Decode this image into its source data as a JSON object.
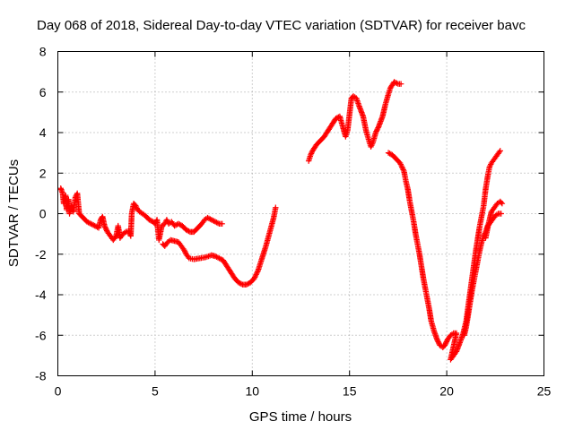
{
  "chart_data": {
    "type": "scatter",
    "title": "Day 068 of 2018, Sidereal Day-to-day VTEC variation (SDTVAR) for receiver bavc",
    "xlabel": "GPS time / hours",
    "ylabel": "SDTVAR / TECUs",
    "xlim": [
      0,
      25
    ],
    "ylim": [
      -8,
      8
    ],
    "xticks": [
      0,
      5,
      10,
      15,
      20,
      25
    ],
    "yticks": [
      -8,
      -6,
      -4,
      -2,
      0,
      2,
      4,
      6,
      8
    ],
    "grid": true,
    "marker": "+",
    "color": "#ff0000",
    "series": [
      {
        "values": [
          [
            0.15,
            1.25
          ],
          [
            0.25,
            1.0
          ],
          [
            0.3,
            0.5
          ],
          [
            0.4,
            0.9
          ],
          [
            0.45,
            0.2
          ],
          [
            0.55,
            0.7
          ],
          [
            0.6,
            0.0
          ],
          [
            0.7,
            0.4
          ],
          [
            0.8,
            0.1
          ],
          [
            0.9,
            0.8
          ],
          [
            1.0,
            1.0
          ],
          [
            1.1,
            0.0
          ],
          [
            1.3,
            -0.2
          ],
          [
            1.5,
            -0.4
          ],
          [
            1.7,
            -0.5
          ],
          [
            1.9,
            -0.6
          ],
          [
            2.1,
            -0.7
          ],
          [
            2.2,
            -0.3
          ],
          [
            2.3,
            -0.15
          ],
          [
            2.4,
            -0.6
          ],
          [
            2.55,
            -0.9
          ],
          [
            2.7,
            -1.1
          ],
          [
            2.85,
            -1.3
          ],
          [
            3.0,
            -1.1
          ],
          [
            3.1,
            -0.6
          ],
          [
            3.2,
            -1.2
          ],
          [
            3.35,
            -1.0
          ],
          [
            3.5,
            -0.9
          ],
          [
            3.65,
            -0.85
          ],
          [
            3.75,
            -1.1
          ],
          [
            3.8,
            0.0
          ],
          [
            3.9,
            0.5
          ],
          [
            4.0,
            0.4
          ],
          [
            4.1,
            0.2
          ],
          [
            4.2,
            0.1
          ],
          [
            4.35,
            0.0
          ],
          [
            4.5,
            -0.1
          ],
          [
            4.7,
            -0.3
          ],
          [
            4.9,
            -0.4
          ],
          [
            5.0,
            -0.5
          ],
          [
            5.1,
            -0.3
          ],
          [
            5.2,
            -1.3
          ],
          [
            5.35,
            -0.6
          ],
          [
            5.5,
            -0.5
          ],
          [
            5.6,
            -0.3
          ],
          [
            5.7,
            -0.5
          ],
          [
            5.85,
            -0.4
          ],
          [
            6.0,
            -0.6
          ],
          [
            6.2,
            -0.5
          ],
          [
            6.4,
            -0.6
          ],
          [
            6.6,
            -0.8
          ],
          [
            6.8,
            -0.9
          ],
          [
            7.0,
            -0.9
          ],
          [
            7.2,
            -0.7
          ],
          [
            7.4,
            -0.5
          ],
          [
            7.55,
            -0.3
          ],
          [
            7.7,
            -0.2
          ],
          [
            7.9,
            -0.3
          ],
          [
            8.1,
            -0.4
          ],
          [
            8.3,
            -0.5
          ],
          [
            8.45,
            -0.5
          ]
        ]
      },
      {
        "values": [
          [
            5.4,
            -1.5
          ],
          [
            5.5,
            -1.6
          ],
          [
            5.65,
            -1.4
          ],
          [
            5.8,
            -1.3
          ],
          [
            6.0,
            -1.35
          ],
          [
            6.2,
            -1.4
          ],
          [
            6.35,
            -1.6
          ],
          [
            6.5,
            -1.8
          ],
          [
            6.6,
            -2.0
          ],
          [
            6.75,
            -2.2
          ],
          [
            7.0,
            -2.25
          ],
          [
            7.3,
            -2.2
          ],
          [
            7.6,
            -2.15
          ],
          [
            7.9,
            -2.05
          ],
          [
            8.1,
            -2.1
          ],
          [
            8.3,
            -2.2
          ],
          [
            8.5,
            -2.3
          ],
          [
            8.7,
            -2.6
          ],
          [
            8.9,
            -2.9
          ],
          [
            9.1,
            -3.2
          ],
          [
            9.3,
            -3.4
          ],
          [
            9.5,
            -3.5
          ],
          [
            9.7,
            -3.5
          ],
          [
            9.9,
            -3.4
          ],
          [
            10.1,
            -3.2
          ],
          [
            10.3,
            -2.8
          ],
          [
            10.5,
            -2.2
          ],
          [
            10.7,
            -1.6
          ],
          [
            10.9,
            -0.9
          ],
          [
            11.1,
            -0.2
          ],
          [
            11.2,
            0.3
          ]
        ]
      },
      {
        "values": [
          [
            12.9,
            2.6
          ],
          [
            13.0,
            2.9
          ],
          [
            13.1,
            3.1
          ],
          [
            13.3,
            3.4
          ],
          [
            13.5,
            3.6
          ],
          [
            13.7,
            3.8
          ],
          [
            13.9,
            4.1
          ],
          [
            14.1,
            4.4
          ],
          [
            14.3,
            4.7
          ],
          [
            14.5,
            4.8
          ],
          [
            14.8,
            3.8
          ],
          [
            14.9,
            4.1
          ],
          [
            15.1,
            5.7
          ],
          [
            15.2,
            5.8
          ],
          [
            15.35,
            5.7
          ],
          [
            15.5,
            5.3
          ],
          [
            15.7,
            4.8
          ],
          [
            15.85,
            4.1
          ],
          [
            16.0,
            3.6
          ],
          [
            16.1,
            3.3
          ],
          [
            16.2,
            3.5
          ],
          [
            16.35,
            4.0
          ],
          [
            16.5,
            4.3
          ],
          [
            16.7,
            4.8
          ],
          [
            16.85,
            5.4
          ],
          [
            17.0,
            5.9
          ],
          [
            17.1,
            6.2
          ],
          [
            17.3,
            6.5
          ],
          [
            17.5,
            6.4
          ],
          [
            17.65,
            6.4
          ]
        ]
      },
      {
        "values": [
          [
            17.0,
            3.0
          ],
          [
            17.2,
            2.9
          ],
          [
            17.4,
            2.7
          ],
          [
            17.6,
            2.5
          ],
          [
            17.8,
            2.1
          ],
          [
            17.9,
            1.6
          ],
          [
            18.0,
            1.2
          ],
          [
            18.1,
            0.6
          ],
          [
            18.2,
            0.1
          ],
          [
            18.3,
            -0.4
          ],
          [
            18.4,
            -1.0
          ],
          [
            18.5,
            -1.5
          ],
          [
            18.6,
            -2.0
          ],
          [
            18.7,
            -2.6
          ],
          [
            18.8,
            -3.2
          ],
          [
            18.9,
            -3.7
          ],
          [
            19.0,
            -4.2
          ],
          [
            19.1,
            -4.7
          ],
          [
            19.2,
            -5.3
          ],
          [
            19.35,
            -5.8
          ],
          [
            19.5,
            -6.2
          ],
          [
            19.65,
            -6.5
          ],
          [
            19.8,
            -6.6
          ],
          [
            19.9,
            -6.5
          ],
          [
            20.05,
            -6.2
          ],
          [
            20.2,
            -6.0
          ],
          [
            20.35,
            -5.9
          ],
          [
            20.5,
            -5.9
          ],
          [
            20.2,
            -7.2
          ],
          [
            20.35,
            -7.0
          ],
          [
            20.5,
            -6.8
          ],
          [
            20.7,
            -6.3
          ],
          [
            20.85,
            -5.9
          ],
          [
            21.0,
            -5.3
          ],
          [
            21.1,
            -4.6
          ],
          [
            21.2,
            -3.9
          ],
          [
            21.3,
            -3.2
          ],
          [
            21.4,
            -2.5
          ],
          [
            21.5,
            -1.8
          ],
          [
            21.6,
            -1.2
          ],
          [
            21.7,
            -0.6
          ],
          [
            21.8,
            -0.1
          ],
          [
            21.9,
            0.4
          ],
          [
            22.0,
            1.2
          ],
          [
            22.1,
            1.8
          ],
          [
            22.2,
            2.3
          ],
          [
            22.3,
            2.5
          ],
          [
            22.45,
            2.7
          ],
          [
            22.6,
            2.9
          ],
          [
            22.75,
            3.1
          ]
        ]
      },
      {
        "values": [
          [
            20.9,
            -6.0
          ],
          [
            21.0,
            -5.6
          ],
          [
            21.1,
            -5.0
          ],
          [
            21.2,
            -4.4
          ],
          [
            21.3,
            -3.8
          ],
          [
            21.4,
            -3.3
          ],
          [
            21.5,
            -2.8
          ],
          [
            21.6,
            -2.3
          ],
          [
            21.7,
            -1.8
          ],
          [
            21.8,
            -1.4
          ],
          [
            21.9,
            -1.1
          ],
          [
            22.0,
            -0.9
          ],
          [
            22.1,
            -0.6
          ],
          [
            22.2,
            -0.5
          ],
          [
            22.35,
            -0.3
          ],
          [
            22.5,
            -0.1
          ],
          [
            22.65,
            0.0
          ],
          [
            22.8,
            0.0
          ]
        ]
      },
      {
        "values": [
          [
            22.0,
            -1.2
          ],
          [
            22.15,
            -0.5
          ],
          [
            22.3,
            0.1
          ],
          [
            22.45,
            0.3
          ],
          [
            22.6,
            0.5
          ],
          [
            22.75,
            0.6
          ],
          [
            22.85,
            0.5
          ]
        ]
      }
    ]
  }
}
